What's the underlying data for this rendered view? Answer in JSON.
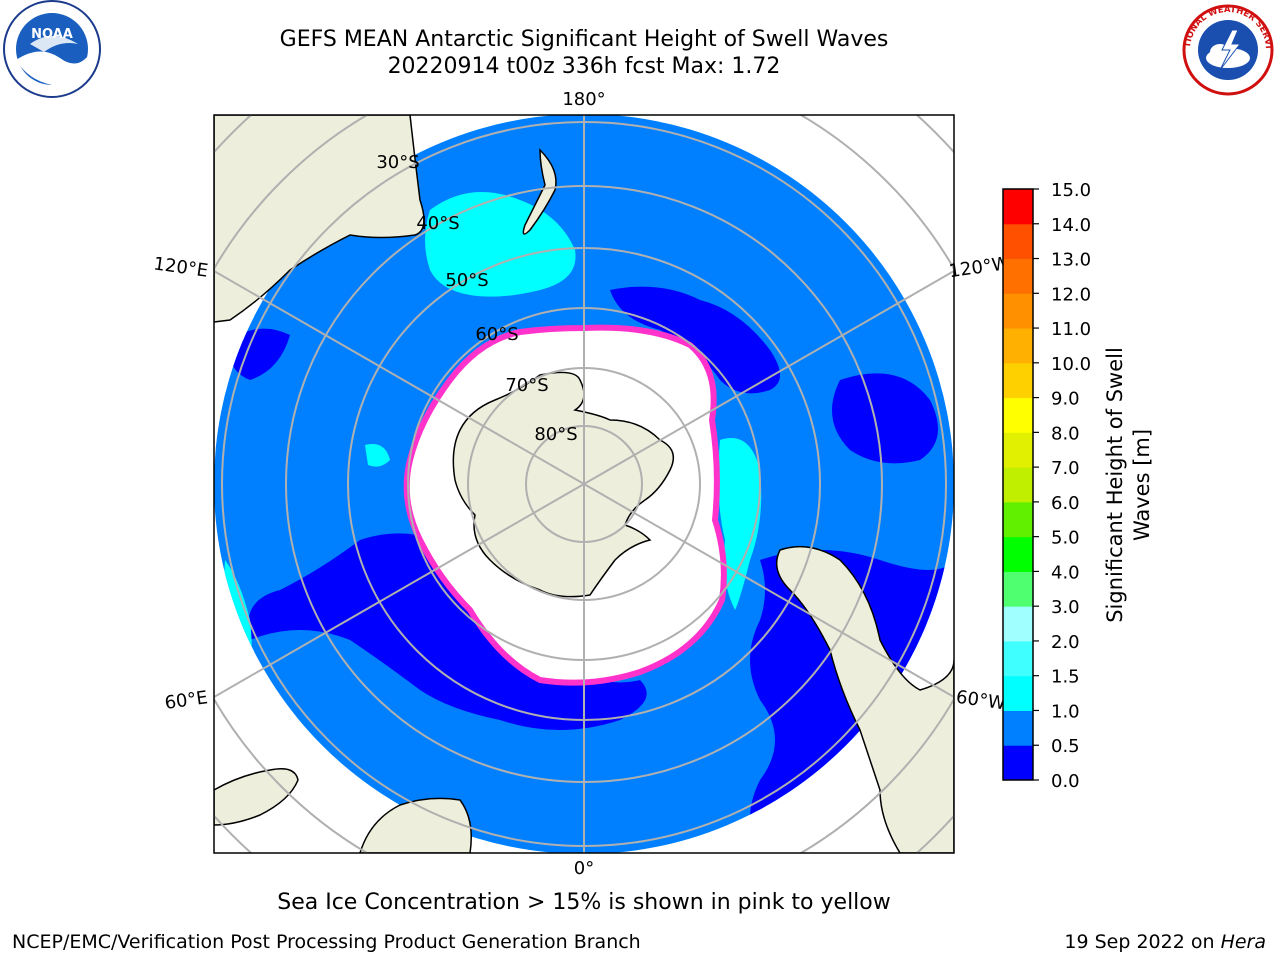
{
  "header": {
    "title_line1": "GEFS MEAN Antarctic Significant Height of Swell Waves",
    "title_line2": "20220914 t00z 336h fcst   Max: 1.72"
  },
  "logos": {
    "left": {
      "icon": "noaa-logo-icon",
      "text": "NOAA"
    },
    "right": {
      "icon": "national-weather-service-logo-icon",
      "text": "NATIONAL WEATHER SERVICE"
    }
  },
  "map": {
    "longitude_labels": [
      "180°",
      "120°E",
      "120°W",
      "60°E",
      "60°W",
      "0°"
    ],
    "latitude_labels": [
      "30°S",
      "40°S",
      "50°S",
      "60°S",
      "70°S",
      "80°S"
    ],
    "colors": {
      "ocean_0_05": "#0000ff",
      "ocean_05_10": "#0080ff",
      "ocean_10_15": "#00ffff",
      "land": "#eeeedc",
      "ice": "#ffffff",
      "ice_edge": "#ff33cc",
      "grid": "#b0b0b0"
    }
  },
  "colorbar": {
    "label": "Significant Height of Swell Waves [m]",
    "label_line1": "Significant Height of Swell",
    "label_line2": "Waves [m]",
    "ticks": [
      "0.0",
      "0.5",
      "1.0",
      "1.5",
      "2.0",
      "3.0",
      "4.0",
      "5.0",
      "6.0",
      "7.0",
      "8.0",
      "9.0",
      "10.0",
      "11.0",
      "12.0",
      "13.0",
      "14.0",
      "15.0"
    ],
    "bins": [
      {
        "color": "#0000ff"
      },
      {
        "color": "#0080ff"
      },
      {
        "color": "#00ffff"
      },
      {
        "color": "#40ffff"
      },
      {
        "color": "#a0ffff"
      },
      {
        "color": "#50ff70"
      },
      {
        "color": "#00ff00"
      },
      {
        "color": "#60f000"
      },
      {
        "color": "#c0f000"
      },
      {
        "color": "#e0f000"
      },
      {
        "color": "#ffff00"
      },
      {
        "color": "#ffd000"
      },
      {
        "color": "#ffb000"
      },
      {
        "color": "#ff9000"
      },
      {
        "color": "#ff7000"
      },
      {
        "color": "#ff5000"
      },
      {
        "color": "#ff0000"
      }
    ]
  },
  "caption": "Sea Ice Concentration > 15% is shown in pink to yellow",
  "footer": {
    "left": "NCEP/EMC/Verification Post Processing Product Generation Branch",
    "right_prefix": "19 Sep 2022 on ",
    "right_machine": "Hera"
  }
}
